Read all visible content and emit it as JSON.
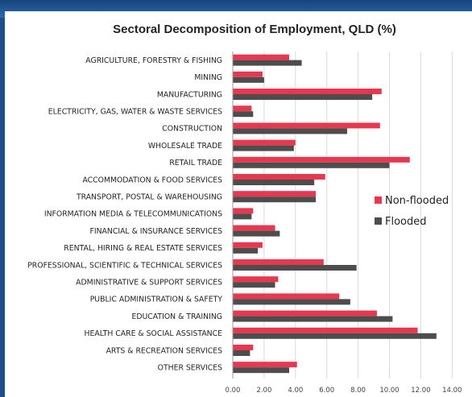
{
  "chart_data": {
    "type": "bar",
    "orientation": "horizontal",
    "title": "Sectoral Decomposition of Employment, QLD (%)",
    "xlabel": "",
    "ylabel": "",
    "xlim": [
      0,
      14
    ],
    "x_ticks": [
      "0.00",
      "2.00",
      "4.00",
      "6.00",
      "8.00",
      "10.00",
      "12.00",
      "14.00"
    ],
    "grid": true,
    "legend_position": "right",
    "categories": [
      "AGRICULTURE, FORESTRY & FISHING",
      "MINING",
      "MANUFACTURING",
      "ELECTRICITY, GAS, WATER & WASTE SERVICES",
      "CONSTRUCTION",
      "WHOLESALE TRADE",
      "RETAIL TRADE",
      "ACCOMMODATION & FOOD SERVICES",
      "TRANSPORT, POSTAL & WAREHOUSING",
      "INFORMATION MEDIA & TELECOMMUNICATIONS",
      "FINANCIAL & INSURANCE SERVICES",
      "RENTAL, HIRING & REAL ESTATE SERVICES",
      "PROFESSIONAL, SCIENTIFIC & TECHNICAL SERVICES",
      "ADMINISTRATIVE & SUPPORT SERVICES",
      "PUBLIC ADMINISTRATION & SAFETY",
      "EDUCATION & TRAINING",
      "HEALTH CARE & SOCIAL ASSISTANCE",
      "ARTS & RECREATION SERVICES",
      "OTHER SERVICES"
    ],
    "series": [
      {
        "name": "Non-flooded",
        "color": "#e8384f",
        "values": [
          3.6,
          1.9,
          9.5,
          1.2,
          9.4,
          4.0,
          11.3,
          5.9,
          5.3,
          1.3,
          2.7,
          1.9,
          5.8,
          2.9,
          6.8,
          9.2,
          11.8,
          1.3,
          4.1
        ]
      },
      {
        "name": "Flooded",
        "color": "#4d4d4d",
        "values": [
          4.4,
          2.0,
          8.9,
          1.3,
          7.3,
          3.9,
          10.0,
          5.2,
          5.3,
          1.2,
          3.0,
          1.6,
          7.9,
          2.7,
          7.5,
          10.2,
          13.0,
          1.1,
          3.6
        ]
      }
    ]
  }
}
